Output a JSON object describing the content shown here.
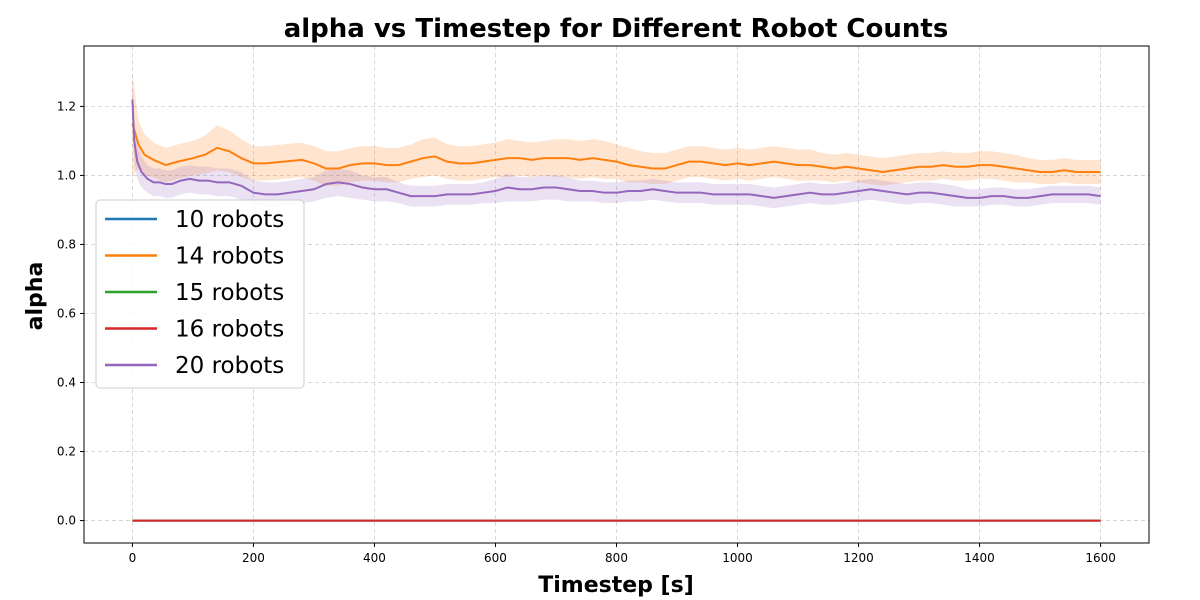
{
  "chart_data": {
    "type": "line",
    "title": "alpha vs Timestep for Different Robot Counts",
    "xlabel": "Timestep [s]",
    "ylabel": "alpha",
    "xlim": [
      -80,
      1680
    ],
    "ylim": [
      -0.065,
      1.375
    ],
    "xticks": [
      0,
      200,
      400,
      600,
      800,
      1000,
      1200,
      1400,
      1600
    ],
    "yticks": [
      0.0,
      0.2,
      0.4,
      0.6,
      0.8,
      1.0,
      1.2
    ],
    "xtick_labels": [
      "0",
      "200",
      "400",
      "600",
      "800",
      "1000",
      "1200",
      "1400",
      "1600"
    ],
    "ytick_labels": [
      "0.0",
      "0.2",
      "0.4",
      "0.6",
      "0.8",
      "1.0",
      "1.2"
    ],
    "grid": true,
    "legend_position": "center-left",
    "series": [
      {
        "name": "10 robots",
        "color": "#1f77b4",
        "x": [
          0,
          1600
        ],
        "y": [
          0.0,
          0.0
        ]
      },
      {
        "name": "14 robots",
        "color": "#ff7f0e",
        "x": [
          0,
          10,
          20,
          35,
          55,
          75,
          100,
          120,
          140,
          160,
          180,
          200,
          220,
          250,
          280,
          300,
          320,
          340,
          360,
          380,
          400,
          420,
          440,
          460,
          480,
          500,
          520,
          540,
          560,
          580,
          600,
          620,
          640,
          660,
          680,
          700,
          720,
          740,
          760,
          780,
          800,
          820,
          840,
          860,
          880,
          900,
          920,
          940,
          960,
          980,
          1000,
          1020,
          1040,
          1060,
          1080,
          1100,
          1120,
          1140,
          1160,
          1180,
          1200,
          1220,
          1240,
          1260,
          1280,
          1300,
          1320,
          1340,
          1360,
          1380,
          1400,
          1420,
          1440,
          1460,
          1480,
          1500,
          1520,
          1540,
          1560,
          1580,
          1600
        ],
        "y": [
          1.15,
          1.09,
          1.06,
          1.045,
          1.03,
          1.04,
          1.05,
          1.06,
          1.08,
          1.07,
          1.05,
          1.035,
          1.035,
          1.04,
          1.045,
          1.035,
          1.02,
          1.02,
          1.03,
          1.035,
          1.035,
          1.03,
          1.03,
          1.04,
          1.05,
          1.055,
          1.04,
          1.035,
          1.035,
          1.04,
          1.045,
          1.05,
          1.05,
          1.045,
          1.05,
          1.05,
          1.05,
          1.045,
          1.05,
          1.045,
          1.04,
          1.03,
          1.025,
          1.02,
          1.02,
          1.03,
          1.04,
          1.04,
          1.035,
          1.03,
          1.035,
          1.03,
          1.035,
          1.04,
          1.035,
          1.03,
          1.03,
          1.025,
          1.02,
          1.025,
          1.02,
          1.015,
          1.01,
          1.015,
          1.02,
          1.025,
          1.025,
          1.03,
          1.025,
          1.025,
          1.03,
          1.03,
          1.025,
          1.02,
          1.015,
          1.01,
          1.01,
          1.015,
          1.01,
          1.01,
          1.01
        ],
        "band_halfwidth": [
          0.15,
          0.07,
          0.06,
          0.05,
          0.05,
          0.05,
          0.05,
          0.055,
          0.065,
          0.06,
          0.055,
          0.05,
          0.05,
          0.05,
          0.05,
          0.05,
          0.05,
          0.05,
          0.05,
          0.05,
          0.05,
          0.05,
          0.05,
          0.05,
          0.055,
          0.055,
          0.05,
          0.05,
          0.05,
          0.05,
          0.05,
          0.055,
          0.05,
          0.05,
          0.05,
          0.055,
          0.055,
          0.055,
          0.055,
          0.055,
          0.05,
          0.05,
          0.045,
          0.045,
          0.045,
          0.045,
          0.045,
          0.045,
          0.045,
          0.045,
          0.045,
          0.045,
          0.045,
          0.045,
          0.045,
          0.045,
          0.045,
          0.04,
          0.04,
          0.04,
          0.04,
          0.04,
          0.04,
          0.04,
          0.04,
          0.04,
          0.04,
          0.04,
          0.04,
          0.04,
          0.04,
          0.04,
          0.04,
          0.04,
          0.035,
          0.035,
          0.035,
          0.035,
          0.035,
          0.035,
          0.035
        ]
      },
      {
        "name": "15 robots",
        "color": "#2ca02c",
        "x": [
          0,
          1600
        ],
        "y": [
          0.0,
          0.0
        ]
      },
      {
        "name": "16 robots",
        "color": "#d62728",
        "x": [
          0,
          1600
        ],
        "y": [
          0.0,
          0.0
        ]
      },
      {
        "name": "20 robots",
        "color": "#9467bd",
        "x": [
          0,
          3,
          8,
          15,
          25,
          35,
          45,
          55,
          65,
          80,
          95,
          110,
          125,
          140,
          160,
          180,
          200,
          220,
          240,
          260,
          280,
          300,
          320,
          340,
          360,
          380,
          400,
          420,
          440,
          460,
          480,
          500,
          520,
          540,
          560,
          580,
          600,
          620,
          640,
          660,
          680,
          700,
          720,
          740,
          760,
          780,
          800,
          820,
          840,
          860,
          880,
          900,
          920,
          940,
          960,
          980,
          1000,
          1020,
          1040,
          1060,
          1080,
          1100,
          1120,
          1140,
          1160,
          1180,
          1200,
          1220,
          1240,
          1260,
          1280,
          1300,
          1320,
          1340,
          1360,
          1380,
          1400,
          1420,
          1440,
          1460,
          1480,
          1500,
          1520,
          1540,
          1560,
          1580,
          1600
        ],
        "y": [
          1.22,
          1.1,
          1.04,
          1.01,
          0.99,
          0.98,
          0.98,
          0.975,
          0.975,
          0.985,
          0.99,
          0.985,
          0.985,
          0.98,
          0.98,
          0.97,
          0.95,
          0.945,
          0.945,
          0.95,
          0.955,
          0.96,
          0.975,
          0.98,
          0.975,
          0.965,
          0.96,
          0.96,
          0.95,
          0.94,
          0.94,
          0.94,
          0.945,
          0.945,
          0.945,
          0.95,
          0.955,
          0.965,
          0.96,
          0.96,
          0.965,
          0.965,
          0.96,
          0.955,
          0.955,
          0.95,
          0.95,
          0.955,
          0.955,
          0.96,
          0.955,
          0.95,
          0.95,
          0.95,
          0.945,
          0.945,
          0.945,
          0.945,
          0.94,
          0.935,
          0.94,
          0.945,
          0.95,
          0.945,
          0.945,
          0.95,
          0.955,
          0.96,
          0.955,
          0.95,
          0.945,
          0.95,
          0.95,
          0.945,
          0.94,
          0.935,
          0.935,
          0.94,
          0.94,
          0.935,
          0.935,
          0.94,
          0.945,
          0.945,
          0.945,
          0.945,
          0.94
        ],
        "band_halfwidth": [
          0.07,
          0.06,
          0.05,
          0.045,
          0.04,
          0.04,
          0.04,
          0.04,
          0.04,
          0.04,
          0.04,
          0.04,
          0.04,
          0.04,
          0.04,
          0.04,
          0.035,
          0.035,
          0.035,
          0.035,
          0.035,
          0.035,
          0.04,
          0.04,
          0.04,
          0.035,
          0.035,
          0.035,
          0.03,
          0.03,
          0.03,
          0.03,
          0.03,
          0.03,
          0.03,
          0.03,
          0.035,
          0.04,
          0.035,
          0.035,
          0.035,
          0.035,
          0.035,
          0.03,
          0.03,
          0.03,
          0.03,
          0.03,
          0.03,
          0.03,
          0.03,
          0.03,
          0.03,
          0.03,
          0.03,
          0.03,
          0.03,
          0.03,
          0.03,
          0.03,
          0.03,
          0.03,
          0.03,
          0.03,
          0.03,
          0.03,
          0.03,
          0.03,
          0.03,
          0.03,
          0.03,
          0.03,
          0.03,
          0.03,
          0.03,
          0.025,
          0.025,
          0.025,
          0.025,
          0.025,
          0.025,
          0.025,
          0.025,
          0.025,
          0.025,
          0.025,
          0.025
        ]
      }
    ]
  }
}
